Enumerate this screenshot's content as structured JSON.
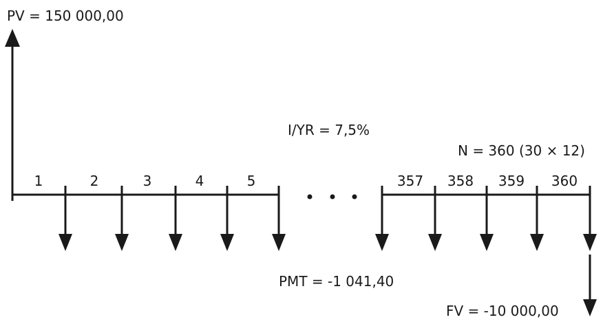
{
  "labels": {
    "pv": "PV = 150 000,00",
    "iyr": "I/YR = 7,5%",
    "n": "N = 360 (30 × 12)",
    "pmt": "PMT = -1 041,40",
    "fv": "FV = -10 000,00"
  },
  "periods": [
    "1",
    "2",
    "3",
    "4",
    "5",
    "357",
    "358",
    "359",
    "360"
  ]
}
